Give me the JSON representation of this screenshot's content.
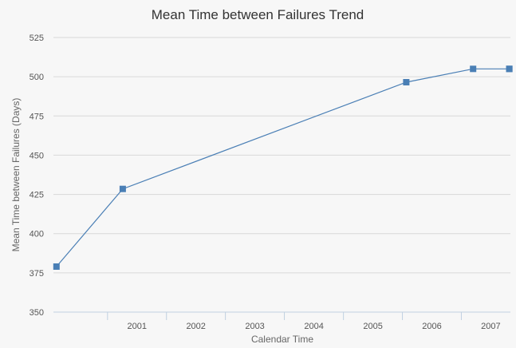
{
  "chart_data": {
    "type": "line",
    "title": "Mean Time between Failures Trend",
    "xlabel": "Calendar Time",
    "ylabel": "Mean Time between Failures (Days)",
    "ylim": [
      350,
      525
    ],
    "xlim": [
      "2000-02-01",
      "2007-11-01"
    ],
    "yticks": [
      350,
      375,
      400,
      425,
      450,
      475,
      500,
      525
    ],
    "xticks": [
      "2001",
      "2002",
      "2003",
      "2004",
      "2005",
      "2006",
      "2007"
    ],
    "grid": true,
    "legend": "none",
    "series": [
      {
        "color": "#4a7fb5",
        "marker": "square",
        "points": [
          {
            "x": "2000-02-20",
            "y": 379
          },
          {
            "x": "2001-04-05",
            "y": 428.5
          },
          {
            "x": "2006-01-25",
            "y": 496.5
          },
          {
            "x": "2007-03-15",
            "y": 505
          },
          {
            "x": "2007-10-25",
            "y": 505
          },
          {
            "x": "2007-10-25",
            "y": 505
          }
        ]
      }
    ]
  }
}
